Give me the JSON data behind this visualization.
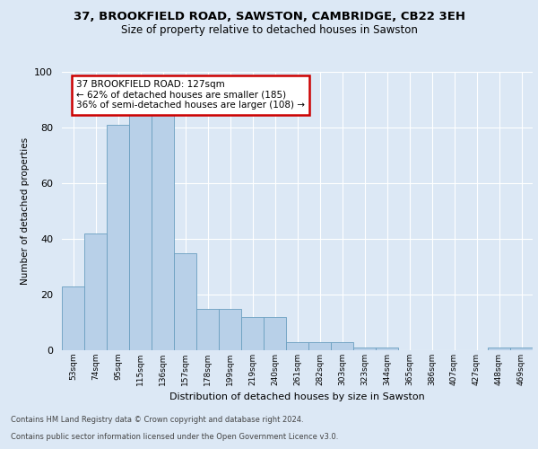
{
  "title1": "37, BROOKFIELD ROAD, SAWSTON, CAMBRIDGE, CB22 3EH",
  "title2": "Size of property relative to detached houses in Sawston",
  "xlabel": "Distribution of detached houses by size in Sawston",
  "ylabel": "Number of detached properties",
  "categories": [
    "53sqm",
    "74sqm",
    "95sqm",
    "115sqm",
    "136sqm",
    "157sqm",
    "178sqm",
    "199sqm",
    "219sqm",
    "240sqm",
    "261sqm",
    "282sqm",
    "303sqm",
    "323sqm",
    "344sqm",
    "365sqm",
    "386sqm",
    "407sqm",
    "427sqm",
    "448sqm",
    "469sqm"
  ],
  "values": [
    23,
    42,
    81,
    85,
    85,
    35,
    15,
    15,
    12,
    12,
    3,
    3,
    3,
    1,
    1,
    0,
    0,
    0,
    0,
    1,
    1
  ],
  "bar_color": "#b8d0e8",
  "bar_edgecolor": "#6a9fc0",
  "annotation_text": "37 BROOKFIELD ROAD: 127sqm\n← 62% of detached houses are smaller (185)\n36% of semi-detached houses are larger (108) →",
  "annotation_box_edgecolor": "#cc0000",
  "annotation_box_facecolor": "#ffffff",
  "footer1": "Contains HM Land Registry data © Crown copyright and database right 2024.",
  "footer2": "Contains public sector information licensed under the Open Government Licence v3.0.",
  "ylim": [
    0,
    100
  ],
  "bg_color": "#dce8f5",
  "plot_bg_color": "#dce8f5"
}
